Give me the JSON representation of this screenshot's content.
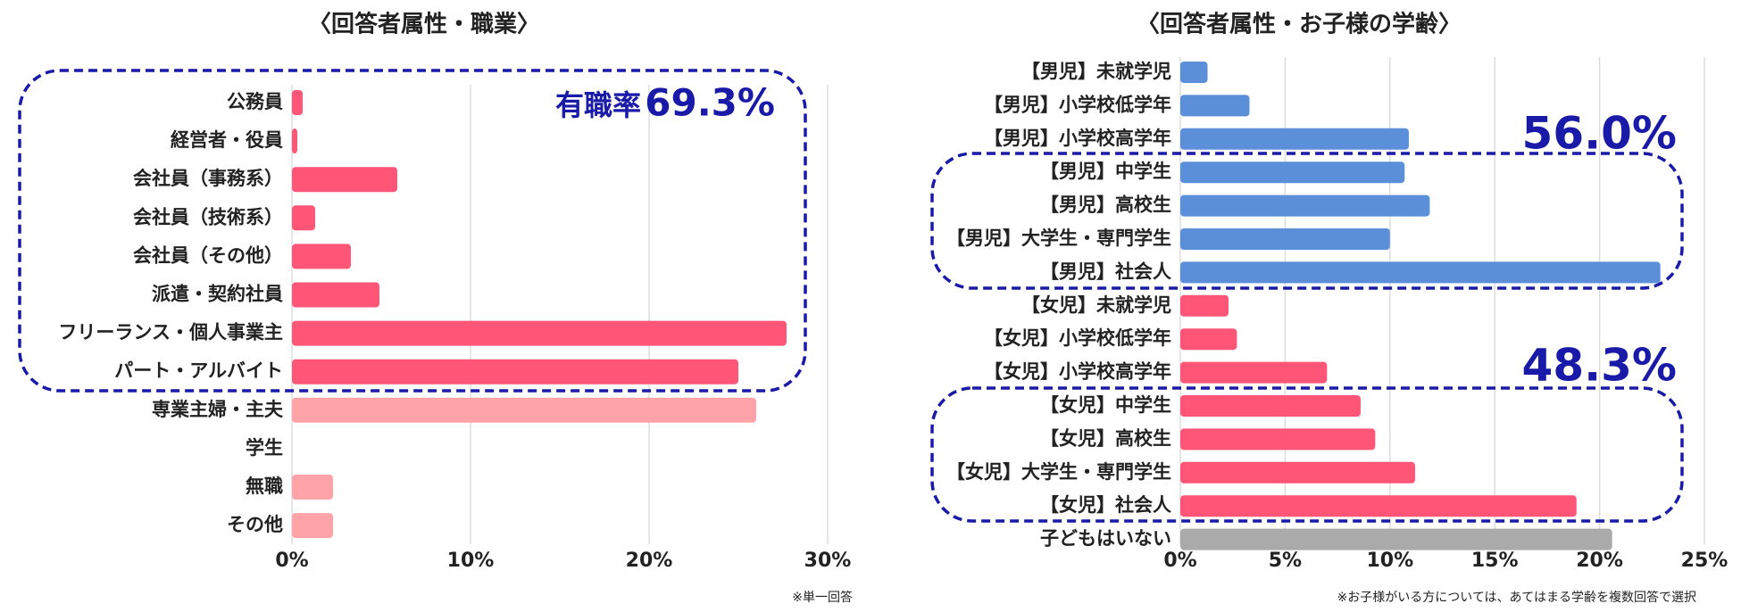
{
  "chart_data": [
    {
      "type": "bar",
      "orientation": "horizontal",
      "title": "〈回答者属性・職業〉",
      "categories": [
        "公務員",
        "経営者・役員",
        "会社員（事務系）",
        "会社員（技術系）",
        "会社員（その他）",
        "派遣・契約社員",
        "フリーランス・個人事業主",
        "パート・アルバイト",
        "専業主婦・主夫",
        "学生",
        "無職",
        "その他"
      ],
      "values": [
        0.6,
        0.3,
        5.9,
        1.3,
        3.3,
        4.9,
        27.7,
        25.0,
        26.0,
        0,
        2.3,
        2.3
      ],
      "colors": [
        "#ff5577",
        "#ff5577",
        "#ff5577",
        "#ff5577",
        "#ff5577",
        "#ff5577",
        "#ff5577",
        "#ff5577",
        "#ffa3a8",
        "#ffa3a8",
        "#ffa3a8",
        "#ffa3a8"
      ],
      "xlim": [
        0,
        30
      ],
      "xticks": [
        {
          "value": 0,
          "label": "0%"
        },
        {
          "value": 10,
          "label": "10%"
        },
        {
          "value": 20,
          "label": "20%"
        },
        {
          "value": 30,
          "label": "30%"
        }
      ],
      "grid": true,
      "annotations": [
        "有職率",
        "69.3%"
      ],
      "note": "※単一回答"
    },
    {
      "type": "bar",
      "orientation": "horizontal",
      "title": "〈回答者属性・お子様の学齢〉",
      "categories": [
        "【男児】未就学児",
        "【男児】小学校低学年",
        "【男児】小学校高学年",
        "【男児】中学生",
        "【男児】高校生",
        "【男児】大学生・専門学生",
        "【男児】社会人",
        "【女児】未就学児",
        "【女児】小学校低学年",
        "【女児】小学校高学年",
        "【女児】中学生",
        "【女児】高校生",
        "【女児】大学生・専門学生",
        "【女児】社会人",
        "子どもはいない"
      ],
      "values": [
        1.3,
        3.3,
        10.9,
        10.7,
        11.9,
        10.0,
        22.9,
        2.3,
        2.7,
        7.0,
        8.6,
        9.3,
        11.2,
        18.9,
        20.6
      ],
      "colors": [
        "#5b8fd9",
        "#5b8fd9",
        "#5b8fd9",
        "#5b8fd9",
        "#5b8fd9",
        "#5b8fd9",
        "#5b8fd9",
        "#ff5577",
        "#ff5577",
        "#ff5577",
        "#ff5577",
        "#ff5577",
        "#ff5577",
        "#ff5577",
        "#aaaaaa"
      ],
      "xlim": [
        0,
        25
      ],
      "xticks": [
        {
          "value": 0,
          "label": "0%"
        },
        {
          "value": 5,
          "label": "5%"
        },
        {
          "value": 10,
          "label": "10%"
        },
        {
          "value": 15,
          "label": "15%"
        },
        {
          "value": 20,
          "label": "20%"
        },
        {
          "value": 25,
          "label": "25%"
        }
      ],
      "grid": true,
      "annotations": [
        "56.0%",
        "48.3%"
      ],
      "note": "※お子様がいる方については、あてはまる学齢を複数回答で選択"
    }
  ]
}
